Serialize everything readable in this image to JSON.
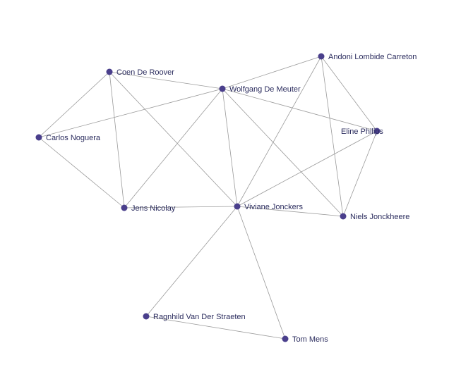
{
  "graph": {
    "node_color": "#4a3f8c",
    "label_color": "#2b2c5e",
    "edge_color": "#9a9a9a",
    "nodes": [
      {
        "id": "coen",
        "label": "Coen De Roover"
      },
      {
        "id": "wolfgang",
        "label": "Wolfgang De Meuter"
      },
      {
        "id": "andoni",
        "label": "Andoni Lombide Carreton"
      },
      {
        "id": "carlos",
        "label": "Carlos Noguera"
      },
      {
        "id": "eline",
        "label": "Eline Philips"
      },
      {
        "id": "jens",
        "label": "Jens Nicolay"
      },
      {
        "id": "viviane",
        "label": "Viviane Jonckers"
      },
      {
        "id": "niels",
        "label": "Niels Jonckheere"
      },
      {
        "id": "ragnhild",
        "label": "Ragnhild Van Der Straeten"
      },
      {
        "id": "tom",
        "label": "Tom Mens"
      }
    ],
    "edges": [
      {
        "source": "coen",
        "target": "wolfgang"
      },
      {
        "source": "coen",
        "target": "carlos"
      },
      {
        "source": "coen",
        "target": "jens"
      },
      {
        "source": "coen",
        "target": "viviane"
      },
      {
        "source": "wolfgang",
        "target": "carlos"
      },
      {
        "source": "wolfgang",
        "target": "andoni"
      },
      {
        "source": "wolfgang",
        "target": "eline"
      },
      {
        "source": "wolfgang",
        "target": "jens"
      },
      {
        "source": "wolfgang",
        "target": "viviane"
      },
      {
        "source": "wolfgang",
        "target": "niels"
      },
      {
        "source": "carlos",
        "target": "jens"
      },
      {
        "source": "andoni",
        "target": "eline"
      },
      {
        "source": "andoni",
        "target": "niels"
      },
      {
        "source": "andoni",
        "target": "viviane"
      },
      {
        "source": "eline",
        "target": "viviane"
      },
      {
        "source": "eline",
        "target": "niels"
      },
      {
        "source": "jens",
        "target": "viviane"
      },
      {
        "source": "viviane",
        "target": "niels"
      },
      {
        "source": "viviane",
        "target": "ragnhild"
      },
      {
        "source": "viviane",
        "target": "tom"
      },
      {
        "source": "ragnhild",
        "target": "tom"
      }
    ]
  }
}
